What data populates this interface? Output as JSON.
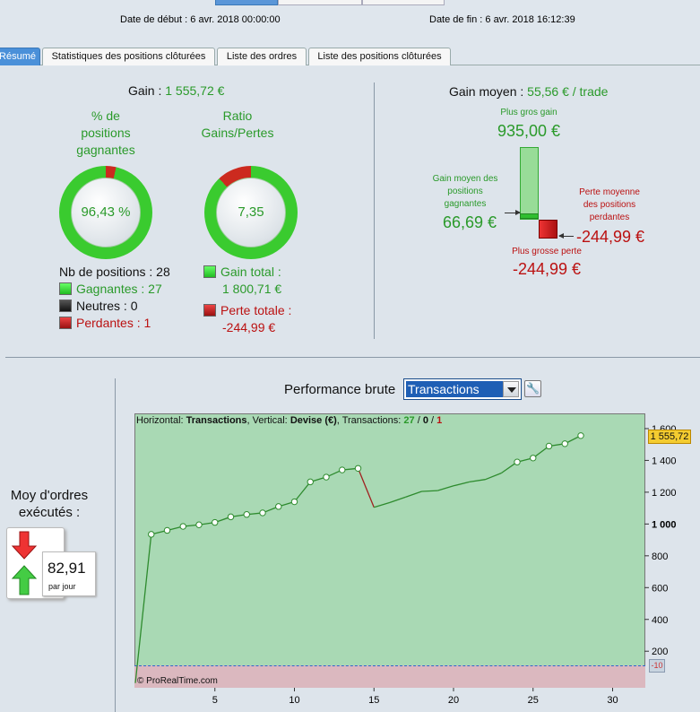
{
  "header": {
    "start_label": "Date de début :",
    "start_value": "6 avr. 2018 00:00:00",
    "end_label": "Date de fin :",
    "end_value": "6 avr. 2018 16:12:39"
  },
  "tabs": [
    "Résumé",
    "Statistiques des positions clôturées",
    "Liste des ordres",
    "Liste des positions clôturées"
  ],
  "summary": {
    "gain_label": "Gain :",
    "gain_value": "1 555,72 €",
    "pct_title": "% de\npositions\ngagnantes",
    "pct_value": "96,43 %",
    "ratio_title": "Ratio\nGains/Pertes",
    "ratio_value": "7,35",
    "nb_positions": "Nb de positions : 28",
    "gagnantes": "Gagnantes : 27",
    "neutres": "Neutres : 0",
    "perdantes": "Perdantes : 1",
    "gain_total_label": "Gain total :",
    "gain_total_value": "1 800,71 €",
    "perte_totale_label": "Perte totale :",
    "perte_totale_value": "-244,99 €",
    "win_fraction": 0.9643,
    "ratio_fraction": 0.88
  },
  "gain_moyen": {
    "label": "Gain moyen :",
    "value": "55,56 € / trade",
    "plus_gros_gain_label": "Plus gros gain",
    "plus_gros_gain_value": "935,00 €",
    "gain_moyen_pos_label": "Gain moyen des\npositions\ngagnantes",
    "gain_moyen_pos_value": "66,69 €",
    "perte_moyenne_label": "Perte moyenne\ndes positions\nperdantes",
    "perte_moyenne_value": "-244,99 €",
    "plus_grosse_perte_label": "Plus grosse perte",
    "plus_grosse_perte_value": "-244,99 €"
  },
  "orders": {
    "title": "Moy d'ordres\nexécutés :",
    "value": "82,91",
    "unit": "par jour"
  },
  "performance": {
    "label": "Performance brute",
    "selected": "Transactions",
    "info_h": "Horizontal:",
    "info_h_val": "Transactions",
    "info_v": ", Vertical:",
    "info_v_val": "Devise (€)",
    "info_t": ", Transactions:",
    "info_win": "27",
    "info_sep1": " / ",
    "info_neu": "0",
    "info_sep2": " / ",
    "info_los": "1",
    "watermark": "© ProRealTime.com",
    "last_value": "1 555,72",
    "neg_tick": "-10",
    "colors": {
      "line": "#2e8b2e",
      "loss_line": "#a02020",
      "bg": "#a9d9b4"
    }
  },
  "chart_data": {
    "type": "line",
    "x": [
      0,
      1,
      2,
      3,
      4,
      5,
      6,
      7,
      8,
      9,
      10,
      11,
      12,
      13,
      14,
      15,
      16,
      17,
      18,
      19,
      20,
      21,
      22,
      23,
      24,
      25,
      26,
      27,
      28
    ],
    "y": [
      0,
      935,
      960,
      985,
      995,
      1010,
      1045,
      1060,
      1070,
      1110,
      1140,
      1265,
      1295,
      1340,
      1350,
      1105,
      1135,
      1170,
      1205,
      1210,
      1240,
      1265,
      1280,
      1320,
      1390,
      1415,
      1490,
      1505,
      1555.72
    ],
    "markers_x": [
      1,
      2,
      3,
      4,
      5,
      6,
      7,
      8,
      9,
      10,
      11,
      12,
      13,
      14,
      24,
      25,
      26,
      27,
      28
    ],
    "loss_segment": [
      14,
      15
    ],
    "xlim": [
      0,
      32
    ],
    "ylim": [
      -30,
      1690
    ],
    "xticks": [
      5,
      10,
      15,
      20,
      25,
      30
    ],
    "yticks": [
      200,
      400,
      600,
      800,
      1000,
      1200,
      1400,
      1600
    ],
    "ytick_labels": [
      "200",
      "400",
      "600",
      "800",
      "1 000",
      "1 200",
      "1 400",
      "1 600"
    ]
  }
}
